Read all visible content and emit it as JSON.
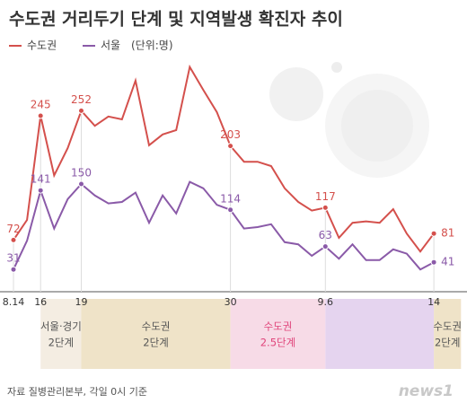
{
  "chart_data": {
    "type": "line",
    "title": "수도권 거리두기 단계 및 지역발생 확진자 추이",
    "unit": "(단위:명)",
    "categories": [
      "8.14",
      null,
      "16",
      null,
      null,
      "19",
      null,
      null,
      null,
      null,
      null,
      null,
      null,
      null,
      null,
      null,
      "30",
      null,
      null,
      null,
      null,
      null,
      null,
      "9.6",
      null,
      null,
      null,
      null,
      null,
      null,
      null,
      "14"
    ],
    "series": [
      {
        "name": "수도권",
        "color": "#d4504c",
        "values": [
          72,
          100,
          245,
          162,
          200,
          252,
          231,
          244,
          240,
          294,
          204,
          219,
          225,
          313,
          281,
          250,
          203,
          181,
          181,
          175,
          144,
          125,
          113,
          117,
          75,
          96,
          98,
          96,
          115,
          81,
          56,
          81
        ],
        "value_labels": [
          "72",
          null,
          "245",
          null,
          null,
          "252",
          null,
          null,
          null,
          null,
          null,
          null,
          null,
          null,
          null,
          null,
          "203",
          null,
          null,
          null,
          null,
          null,
          null,
          "117",
          null,
          null,
          null,
          null,
          null,
          null,
          null,
          "81"
        ]
      },
      {
        "name": "서울",
        "color": "#8a5aa8",
        "values": [
          31,
          71,
          141,
          88,
          129,
          150,
          134,
          123,
          125,
          138,
          96,
          134,
          109,
          153,
          144,
          121,
          114,
          88,
          90,
          94,
          69,
          66,
          50,
          63,
          46,
          66,
          44,
          44,
          59,
          53,
          31,
          41
        ],
        "value_labels": [
          "31",
          null,
          "141",
          null,
          null,
          "150",
          null,
          null,
          null,
          null,
          null,
          null,
          null,
          null,
          null,
          null,
          "114",
          null,
          null,
          null,
          null,
          null,
          null,
          "63",
          null,
          null,
          null,
          null,
          null,
          null,
          null,
          "41"
        ]
      }
    ],
    "ylim": [
      0,
      325
    ],
    "bands": [
      {
        "from": 2,
        "to": 5,
        "color": "#f4ede2",
        "label": [
          "서울·경기",
          "2단계"
        ],
        "label_color": "#555555"
      },
      {
        "from": 5,
        "to": 16,
        "color": "#efe3c8",
        "label": [
          "수도권",
          "2단계"
        ],
        "label_color": "#555555"
      },
      {
        "from": 16,
        "to": 23,
        "color": "#f7dbe7",
        "label": [
          "수도권",
          "2.5단계"
        ],
        "label_color": "#e0457b"
      },
      {
        "from": 23,
        "to": 31,
        "color": "#e5d4ef"
      },
      {
        "from": 31,
        "to": 33,
        "color": "#efe3c8",
        "label": [
          "수도권",
          "2단계"
        ],
        "label_color": "#555555"
      }
    ],
    "source": "자료 질병관리본부, 각일 0시 기준",
    "logo": "news1"
  }
}
